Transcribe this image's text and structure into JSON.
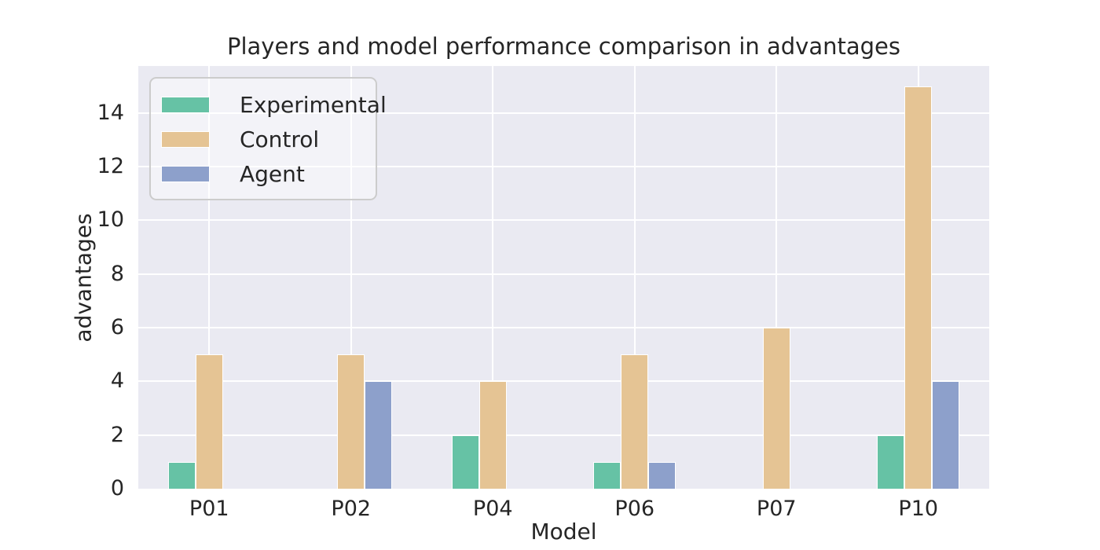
{
  "chart_data": {
    "type": "bar",
    "title": "Players and model performance comparison in advantages",
    "xlabel": "Model",
    "ylabel": "advantages",
    "categories": [
      "P01",
      "P02",
      "P04",
      "P06",
      "P07",
      "P10"
    ],
    "series": [
      {
        "name": "Experimental",
        "color": "#66c2a5",
        "values": [
          1,
          0,
          2,
          1,
          0,
          2
        ]
      },
      {
        "name": "Control",
        "color": "#e5c494",
        "values": [
          5,
          5,
          4,
          5,
          6,
          15
        ]
      },
      {
        "name": "Agent",
        "color": "#8da0cb",
        "values": [
          0,
          4,
          0,
          1,
          0,
          4
        ]
      }
    ],
    "ylim": [
      0,
      15.75
    ],
    "yticks": [
      0,
      2,
      4,
      6,
      8,
      10,
      12,
      14
    ],
    "grid": true,
    "legend_position": "upper left",
    "plot_bg_color": "#eaeaf2",
    "grid_color": "#ffffff",
    "text_color": "#262626"
  }
}
